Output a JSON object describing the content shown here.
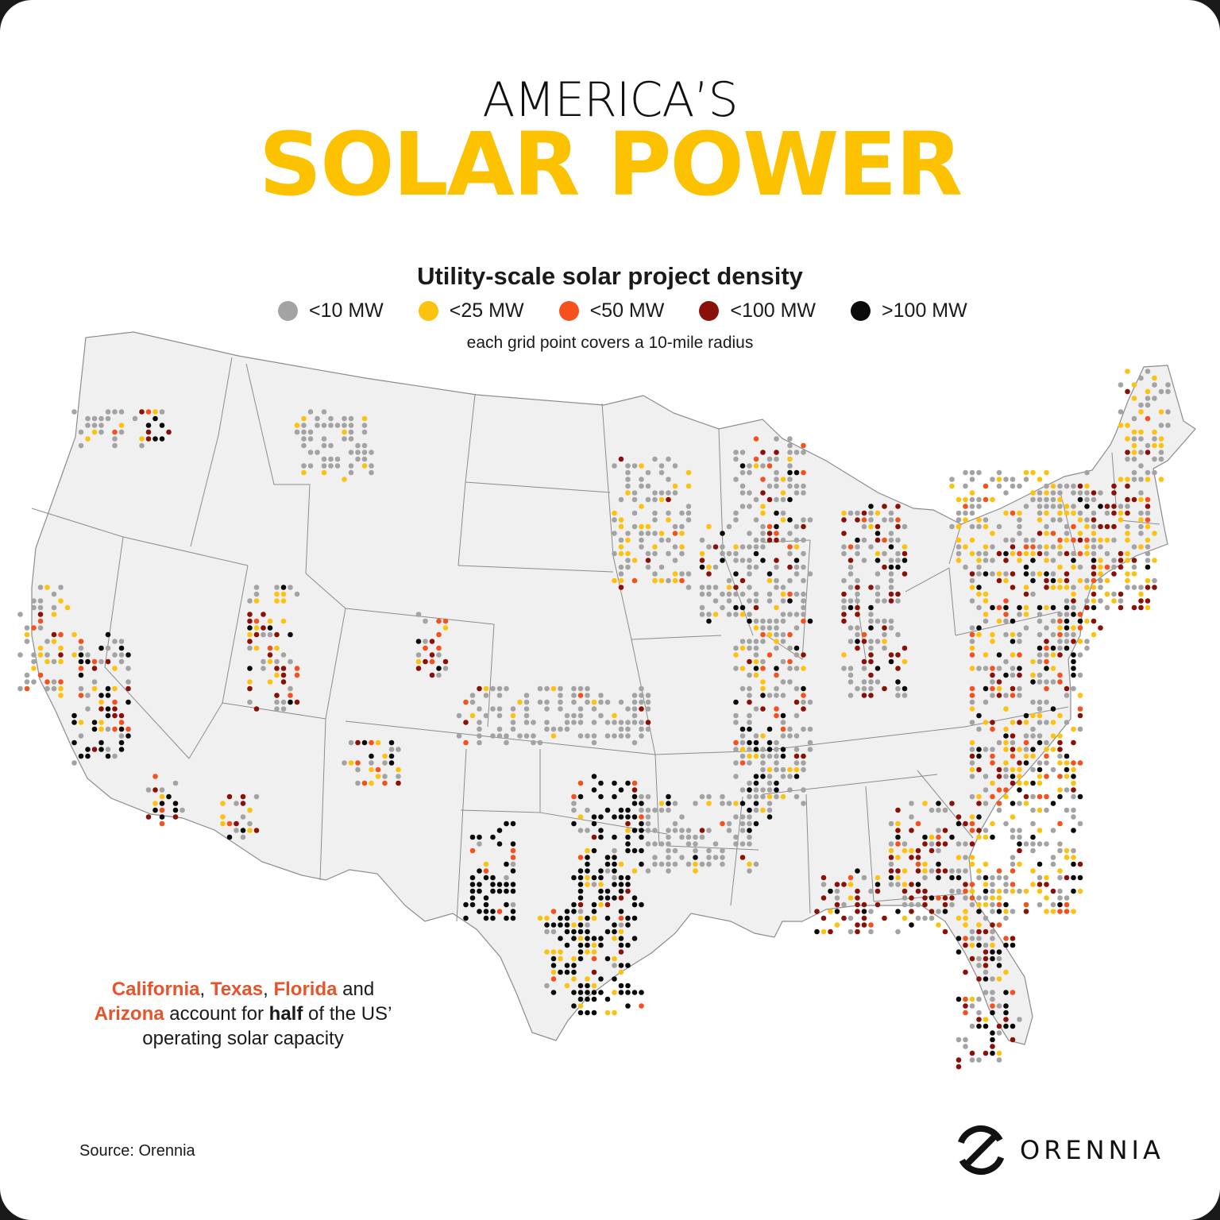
{
  "title": {
    "line1": "AMERICA’S",
    "line2": "SOLAR POWER",
    "line2_color": "#FCC200"
  },
  "legend": {
    "title": "Utility-scale solar project density",
    "note": "each grid point covers a 10-mile radius",
    "items": [
      {
        "label": "<10 MW",
        "color": "#A3A3A3"
      },
      {
        "label": "<25 MW",
        "color": "#FDC20F"
      },
      {
        "label": "<50 MW",
        "color": "#F4511E"
      },
      {
        "label": "<100 MW",
        "color": "#8A1109"
      },
      {
        "label": ">100 MW",
        "color": "#0B0B0B"
      }
    ]
  },
  "map": {
    "region": "Contiguous United States",
    "land_color": "#F0F0F0",
    "border_color": "#8C8C8C"
  },
  "callout": {
    "states": [
      "California",
      "Texas",
      "Florida",
      "Arizona"
    ],
    "highlight_color": "#E8542A",
    "sep1": ", ",
    "sep2": ", ",
    "and": " and ",
    "mid": " account for ",
    "bold": "half",
    "tail": " of the US’ operating solar capacity"
  },
  "source": "Source: Orennia",
  "brand": "ORENNIA"
}
